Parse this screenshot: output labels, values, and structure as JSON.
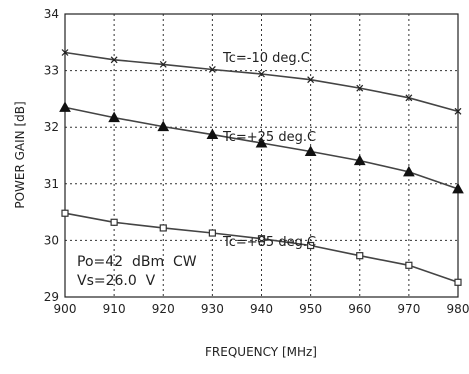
{
  "chart_data": {
    "type": "line",
    "xlabel": "FREQUENCY [MHz]",
    "ylabel": "POWER  GAIN [dB]",
    "xlim": [
      900,
      980
    ],
    "ylim": [
      29,
      34
    ],
    "x_ticks": [
      "900",
      "910",
      "920",
      "930",
      "940",
      "950",
      "960",
      "970",
      "980"
    ],
    "y_ticks": [
      "29",
      "30",
      "31",
      "32",
      "33",
      "34"
    ],
    "grid": true,
    "x": [
      900,
      910,
      920,
      930,
      940,
      950,
      960,
      970,
      980
    ],
    "series": [
      {
        "name": "Tc=-10 deg.C",
        "marker": "x",
        "values": [
          33.32,
          33.19,
          33.11,
          33.02,
          32.94,
          32.84,
          32.69,
          32.52,
          32.28
        ]
      },
      {
        "name": "Tc=+25 deg.C",
        "marker": "triangle",
        "values": [
          32.35,
          32.17,
          32.01,
          31.87,
          31.72,
          31.57,
          31.41,
          31.21,
          30.91
        ]
      },
      {
        "name": "Tc=+85 deg.C",
        "marker": "square",
        "values": [
          30.48,
          30.32,
          30.22,
          30.13,
          30.03,
          29.91,
          29.73,
          29.56,
          29.26
        ]
      }
    ],
    "annotations": [
      "Po=42  dBm  CW",
      "Vs=26.0  V"
    ]
  }
}
